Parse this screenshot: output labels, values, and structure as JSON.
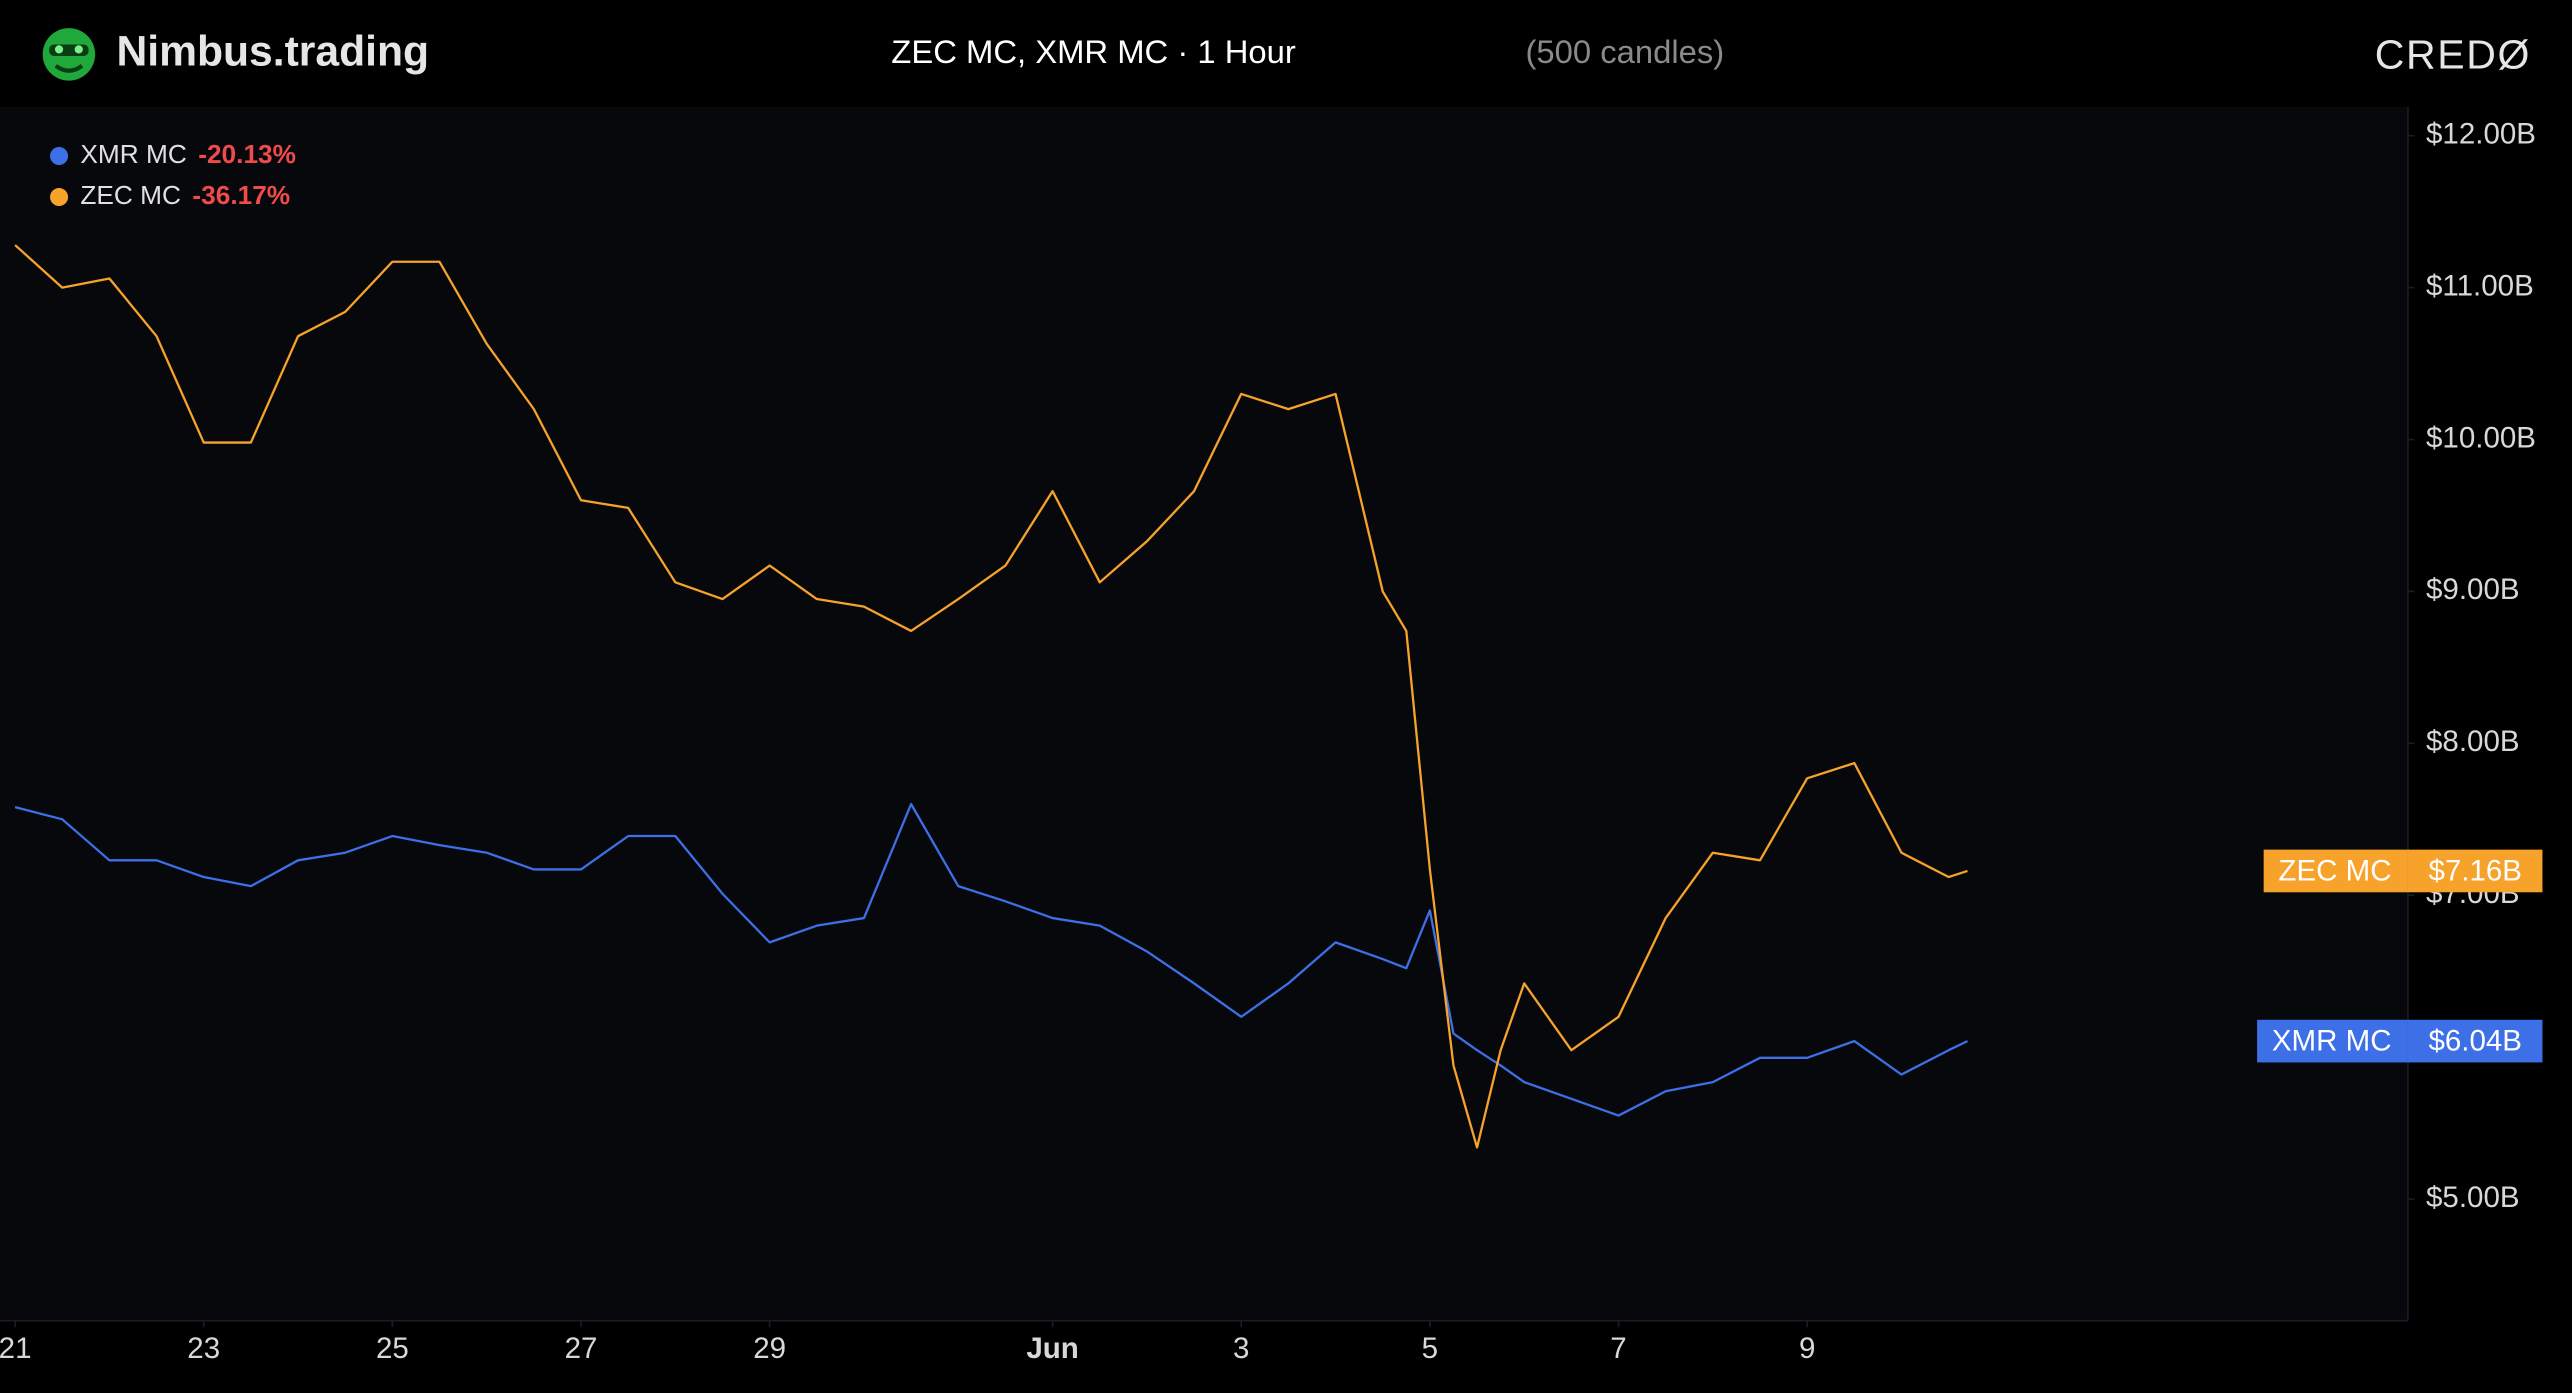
{
  "brand": "Nimbus.trading",
  "partner": "CREDØ",
  "chart_data": {
    "type": "line",
    "title": "ZEC MC, XMR MC · 1 Hour",
    "subtitle": "(500 candles)",
    "x": [
      21,
      21.5,
      22,
      22.5,
      23,
      23.5,
      24,
      24.5,
      25,
      25.5,
      26,
      26.5,
      27,
      27.5,
      28,
      28.5,
      29,
      29.5,
      30,
      30.5,
      31,
      31.5,
      32,
      32.5,
      33,
      33.5,
      34,
      34.5,
      35,
      35.5,
      35.75,
      36,
      36.25,
      36.5,
      36.75,
      37,
      37.5,
      38,
      38.5,
      39,
      39.5,
      40,
      40.5,
      41,
      41.5,
      41.7
    ],
    "series": [
      {
        "name": "XMR MC",
        "color": "#3d6fe6",
        "change": "-20.13%",
        "last_label": "$6.04B",
        "values": [
          7.58,
          7.5,
          7.23,
          7.23,
          7.12,
          7.06,
          7.23,
          7.28,
          7.39,
          7.33,
          7.28,
          7.17,
          7.17,
          7.39,
          7.39,
          7.01,
          6.69,
          6.8,
          6.85,
          7.6,
          7.06,
          6.96,
          6.85,
          6.8,
          6.63,
          6.42,
          6.2,
          6.42,
          6.69,
          6.58,
          6.52,
          6.9,
          6.09,
          5.98,
          5.88,
          5.77,
          5.66,
          5.55,
          5.71,
          5.77,
          5.93,
          5.93,
          6.04,
          5.82,
          5.98,
          6.04
        ]
      },
      {
        "name": "ZEC MC",
        "color": "#f7a22b",
        "change": "-36.17%",
        "last_label": "$7.16B",
        "values": [
          11.28,
          11.0,
          11.06,
          10.68,
          9.98,
          9.98,
          10.68,
          10.84,
          11.17,
          11.17,
          10.63,
          10.2,
          9.6,
          9.55,
          9.06,
          8.95,
          9.17,
          8.95,
          8.9,
          8.74,
          8.95,
          9.17,
          9.66,
          9.06,
          9.33,
          9.66,
          10.3,
          10.2,
          10.3,
          9.0,
          8.74,
          7.17,
          5.88,
          5.34,
          5.98,
          6.42,
          5.98,
          6.2,
          6.85,
          7.28,
          7.23,
          7.77,
          7.87,
          7.28,
          7.12,
          7.16
        ]
      }
    ],
    "xlim": [
      20.84,
      46.37
    ],
    "xticks": [
      21,
      23,
      25,
      27,
      29,
      {
        "value": 32,
        "label": "Jun"
      },
      {
        "value": 34,
        "label": "3"
      },
      {
        "value": 36,
        "label": "5"
      },
      {
        "value": 38,
        "label": "7"
      },
      {
        "value": 40,
        "label": "9"
      }
    ],
    "ylim": [
      4.2,
      12.19
    ],
    "yticks": [
      {
        "value": 5,
        "label": "$5.00B"
      },
      {
        "value": 7,
        "label": "$7.00B"
      },
      {
        "value": 8,
        "label": "$8.00B"
      },
      {
        "value": 9,
        "label": "$9.00B"
      },
      {
        "value": 10,
        "label": "$10.00B"
      },
      {
        "value": 11,
        "label": "$11.00B"
      },
      {
        "value": 12,
        "label": "$12.00B"
      }
    ],
    "grid": false
  }
}
